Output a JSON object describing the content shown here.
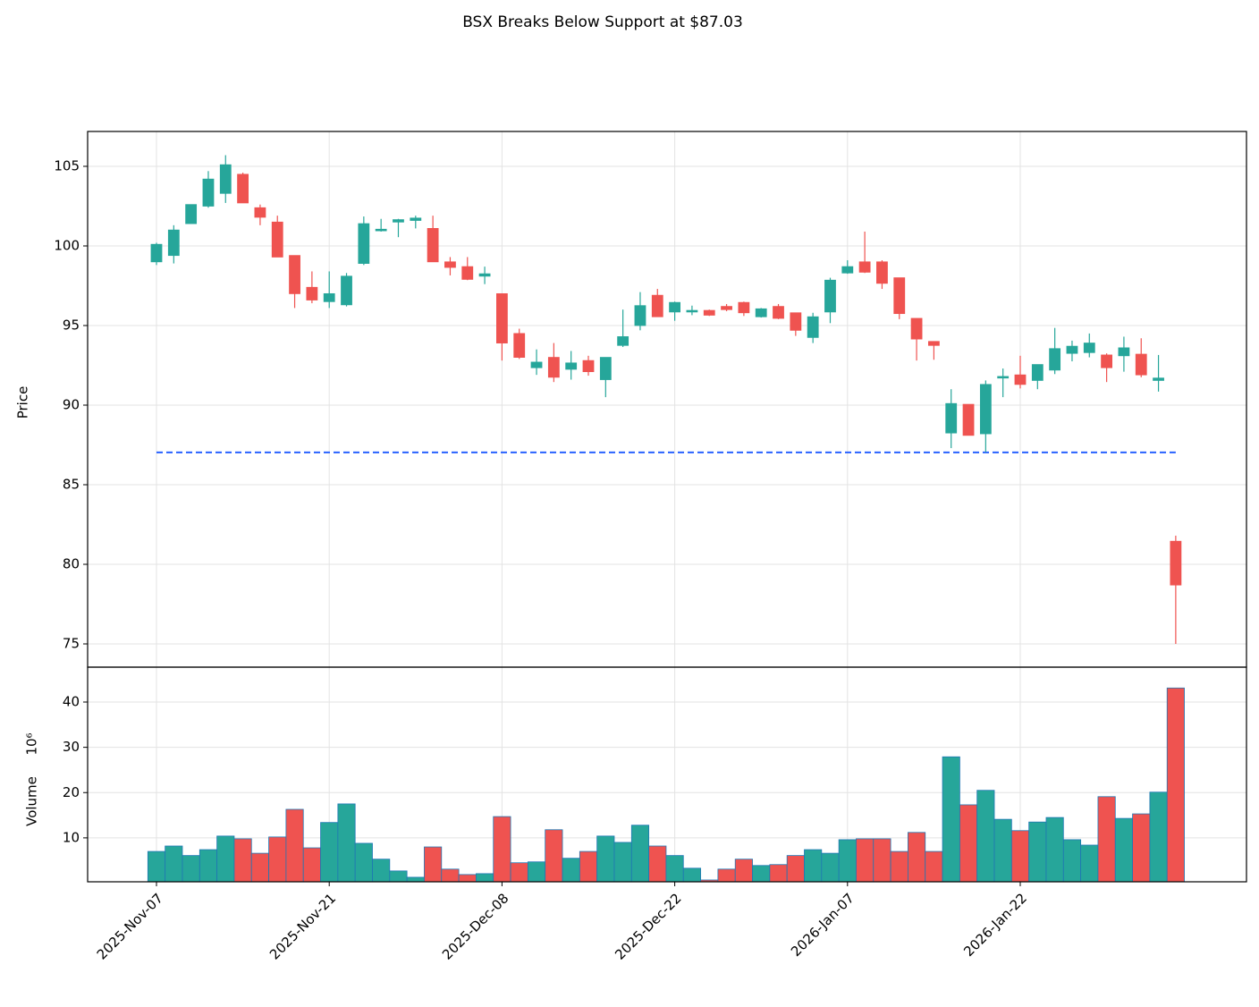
{
  "chart_data": {
    "type": "candlestick",
    "title": "BSX Breaks Below Support at $87.03",
    "ylabel": "Price",
    "volume_label": "Volume",
    "volume_offset": "10⁶",
    "categories": [
      "2025-Nov-07",
      null,
      null,
      null,
      null,
      null,
      null,
      null,
      null,
      null,
      "2025-Nov-21",
      null,
      null,
      null,
      null,
      null,
      null,
      null,
      null,
      null,
      "2025-Dec-08",
      null,
      null,
      null,
      null,
      null,
      null,
      null,
      null,
      null,
      "2025-Dec-22",
      null,
      null,
      null,
      null,
      null,
      null,
      null,
      null,
      null,
      "2026-Jan-07",
      null,
      null,
      null,
      null,
      null,
      null,
      null,
      null,
      null,
      "2026-Jan-22",
      null,
      null,
      null,
      null,
      null,
      null,
      null,
      null,
      null
    ],
    "open": [
      99.0,
      99.4,
      101.4,
      102.5,
      103.3,
      104.5,
      102.4,
      101.5,
      99.4,
      97.4,
      96.5,
      96.3,
      98.9,
      100.95,
      101.5,
      101.6,
      101.1,
      99.0,
      98.7,
      98.1,
      97.0,
      94.5,
      92.35,
      93.0,
      92.25,
      92.8,
      91.6,
      93.75,
      95.0,
      96.9,
      95.85,
      95.85,
      95.95,
      96.2,
      96.45,
      95.55,
      96.2,
      95.8,
      94.25,
      95.85,
      98.3,
      99.0,
      99.0,
      98.0,
      95.45,
      94.0,
      88.25,
      90.05,
      88.2,
      91.7,
      91.9,
      91.55,
      92.2,
      93.25,
      93.3,
      93.15,
      93.1,
      93.2,
      91.55,
      81.45
    ],
    "high": [
      100.2,
      101.3,
      102.6,
      104.7,
      105.7,
      104.6,
      102.6,
      101.9,
      99.4,
      98.4,
      98.4,
      98.3,
      101.85,
      101.7,
      101.7,
      101.9,
      101.9,
      99.3,
      99.3,
      98.7,
      97.0,
      94.8,
      93.5,
      93.9,
      93.4,
      93.1,
      93.0,
      96.0,
      97.1,
      97.3,
      96.5,
      96.25,
      96.0,
      96.35,
      96.5,
      96.1,
      96.35,
      95.8,
      95.8,
      98.0,
      99.1,
      100.9,
      99.1,
      98.0,
      95.45,
      94.0,
      91.0,
      90.05,
      91.55,
      92.3,
      93.1,
      92.55,
      94.85,
      94.05,
      94.5,
      93.25,
      94.3,
      94.2,
      93.15,
      81.8
    ],
    "low": [
      98.8,
      98.9,
      101.4,
      102.4,
      102.7,
      102.7,
      101.3,
      99.3,
      96.1,
      96.4,
      96.1,
      96.2,
      98.8,
      100.9,
      100.55,
      101.1,
      99.0,
      98.15,
      97.85,
      97.6,
      92.8,
      92.9,
      91.9,
      91.45,
      91.6,
      91.85,
      90.5,
      93.65,
      94.7,
      95.55,
      95.3,
      95.65,
      95.6,
      95.9,
      95.6,
      95.5,
      95.4,
      94.35,
      93.9,
      95.15,
      98.25,
      98.3,
      97.3,
      95.4,
      92.8,
      92.85,
      87.3,
      88.1,
      87.05,
      90.5,
      91.05,
      91.0,
      91.95,
      92.75,
      93.0,
      91.45,
      92.1,
      91.75,
      90.85,
      75.0
    ],
    "close": [
      100.1,
      101.0,
      102.6,
      104.2,
      105.1,
      102.7,
      101.8,
      99.3,
      97.0,
      96.6,
      97.0,
      98.1,
      101.4,
      101.05,
      101.65,
      101.75,
      99.0,
      98.65,
      97.9,
      98.25,
      93.9,
      93.0,
      92.7,
      91.75,
      92.65,
      92.1,
      93.0,
      94.3,
      96.25,
      95.55,
      96.45,
      95.95,
      95.65,
      96.0,
      95.8,
      96.05,
      95.45,
      94.7,
      95.55,
      97.85,
      98.7,
      98.35,
      97.65,
      95.75,
      94.15,
      93.75,
      90.1,
      88.1,
      91.3,
      91.8,
      91.3,
      92.55,
      93.55,
      93.7,
      93.9,
      92.35,
      93.6,
      91.9,
      91.7,
      78.7
    ],
    "volume": [
      7.0,
      8.2,
      6.1,
      7.4,
      10.4,
      9.8,
      6.6,
      10.2,
      16.3,
      7.8,
      13.4,
      17.5,
      8.8,
      5.3,
      2.7,
      1.3,
      8.0,
      3.1,
      1.9,
      2.1,
      14.7,
      4.5,
      4.7,
      11.8,
      5.5,
      7.0,
      10.4,
      9.0,
      12.8,
      8.2,
      6.1,
      3.3,
      0.7,
      3.1,
      5.3,
      3.9,
      4.1,
      6.1,
      7.4,
      6.6,
      9.6,
      9.8,
      9.8,
      7.0,
      11.2,
      7.0,
      27.9,
      17.3,
      20.5,
      14.1,
      11.6,
      13.5,
      14.5,
      9.6,
      8.4,
      19.1,
      14.3,
      15.3,
      20.1,
      43.1
    ],
    "up_color": "#26a69a",
    "down_color": "#ef5350",
    "volume_edge_color": "#1f77b4",
    "support": 87.03,
    "support_color": "#2962ff",
    "ylim": [
      73.54,
      107.19
    ],
    "yticks": [
      75,
      80,
      85,
      90,
      95,
      100,
      105
    ],
    "volume_ylim": [
      0.3,
      47.7
    ],
    "volume_yticks": [
      10,
      20,
      30,
      40
    ],
    "grid": true
  }
}
